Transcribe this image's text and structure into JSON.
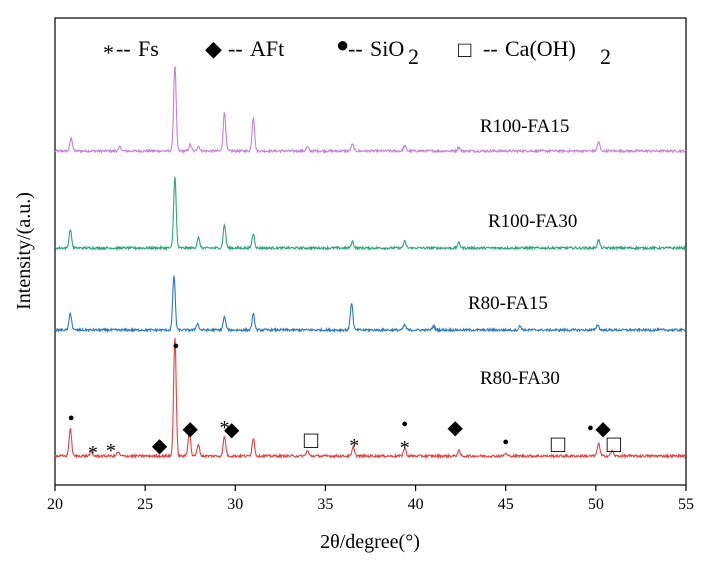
{
  "chart_data": {
    "type": "line",
    "xlabel": "2θ/degree(°)",
    "ylabel": "Intensity/(a.u.)",
    "xlim": [
      20,
      55
    ],
    "xticks": [
      20,
      25,
      30,
      35,
      40,
      45,
      50,
      55
    ],
    "x_tick_labels": [
      "20",
      "25",
      "30",
      "35",
      "40",
      "45",
      "50",
      "55"
    ],
    "legend": [
      {
        "symbol": "*",
        "prefix": "--",
        "label": "Fs"
      },
      {
        "symbol": "◆",
        "prefix": "--",
        "label": "AFt"
      },
      {
        "symbol": "●",
        "prefix": "--",
        "label": "SiO",
        "sub": "2"
      },
      {
        "symbol": "□",
        "prefix": "--",
        "label": "Ca(OH)",
        "sub": "2"
      }
    ],
    "series": [
      {
        "name": "R100-FA15",
        "color": "#c77fd8",
        "offset": 3.0,
        "baseline": 0.0,
        "peaks": [
          [
            20.9,
            0.1
          ],
          [
            23.6,
            0.03
          ],
          [
            26.65,
            0.66
          ],
          [
            27.5,
            0.05
          ],
          [
            27.95,
            0.04
          ],
          [
            29.4,
            0.3
          ],
          [
            31.0,
            0.26
          ],
          [
            34.0,
            0.03
          ],
          [
            36.5,
            0.05
          ],
          [
            39.4,
            0.04
          ],
          [
            42.4,
            0.03
          ],
          [
            50.15,
            0.07
          ]
        ]
      },
      {
        "name": "R100-FA30",
        "color": "#2aa876",
        "offset": 2.0,
        "baseline": 0.0,
        "peaks": [
          [
            20.85,
            0.14
          ],
          [
            26.65,
            0.55
          ],
          [
            27.95,
            0.08
          ],
          [
            29.4,
            0.18
          ],
          [
            31.0,
            0.11
          ],
          [
            36.5,
            0.05
          ],
          [
            39.4,
            0.05
          ],
          [
            42.4,
            0.04
          ],
          [
            50.15,
            0.06
          ]
        ]
      },
      {
        "name": "R80-FA15",
        "color": "#2878c8",
        "offset": 1.0,
        "baseline": 0.0,
        "peaks": [
          [
            20.85,
            0.13
          ],
          [
            26.6,
            0.42
          ],
          [
            27.9,
            0.05
          ],
          [
            29.4,
            0.1
          ],
          [
            31.0,
            0.12
          ],
          [
            36.45,
            0.21
          ],
          [
            39.4,
            0.04
          ],
          [
            41.0,
            0.03
          ],
          [
            45.8,
            0.03
          ],
          [
            50.1,
            0.04
          ]
        ]
      },
      {
        "name": "R80-FA30",
        "color": "#e84040",
        "offset": 0.0,
        "baseline": 0.0,
        "peaks": [
          [
            20.85,
            0.21
          ],
          [
            22.0,
            0.03
          ],
          [
            23.5,
            0.03
          ],
          [
            26.65,
            0.92
          ],
          [
            27.45,
            0.19
          ],
          [
            27.95,
            0.09
          ],
          [
            29.4,
            0.15
          ],
          [
            31.0,
            0.14
          ],
          [
            34.0,
            0.04
          ],
          [
            36.55,
            0.07
          ],
          [
            39.4,
            0.06
          ],
          [
            42.4,
            0.04
          ],
          [
            45.0,
            0.02
          ],
          [
            50.15,
            0.1
          ],
          [
            50.9,
            0.04
          ]
        ]
      }
    ],
    "phase_markers": [
      {
        "phase": "Fs",
        "symbol": "*",
        "x": 22.1
      },
      {
        "phase": "Fs",
        "symbol": "*",
        "x": 23.1
      },
      {
        "phase": "Fs",
        "symbol": "*",
        "x": 29.4
      },
      {
        "phase": "Fs",
        "symbol": "*",
        "x": 36.6
      },
      {
        "phase": "Fs",
        "symbol": "*",
        "x": 39.4
      },
      {
        "phase": "AFt",
        "symbol": "◆",
        "x": 25.8
      },
      {
        "phase": "AFt",
        "symbol": "◆",
        "x": 27.5
      },
      {
        "phase": "AFt",
        "symbol": "◆",
        "x": 29.8
      },
      {
        "phase": "AFt",
        "symbol": "◆",
        "x": 42.2
      },
      {
        "phase": "AFt",
        "symbol": "◆",
        "x": 50.4
      },
      {
        "phase": "SiO2",
        "symbol": "●",
        "x": 20.9
      },
      {
        "phase": "SiO2",
        "symbol": "●",
        "x": 26.7
      },
      {
        "phase": "SiO2",
        "symbol": "●",
        "x": 39.4
      },
      {
        "phase": "SiO2",
        "symbol": "●",
        "x": 45.0
      },
      {
        "phase": "SiO2",
        "symbol": "●",
        "x": 49.7
      },
      {
        "phase": "Ca(OH)2",
        "symbol": "□",
        "x": 34.2
      },
      {
        "phase": "Ca(OH)2",
        "symbol": "□",
        "x": 47.9
      },
      {
        "phase": "Ca(OH)2",
        "symbol": "□",
        "x": 51.0
      }
    ]
  }
}
